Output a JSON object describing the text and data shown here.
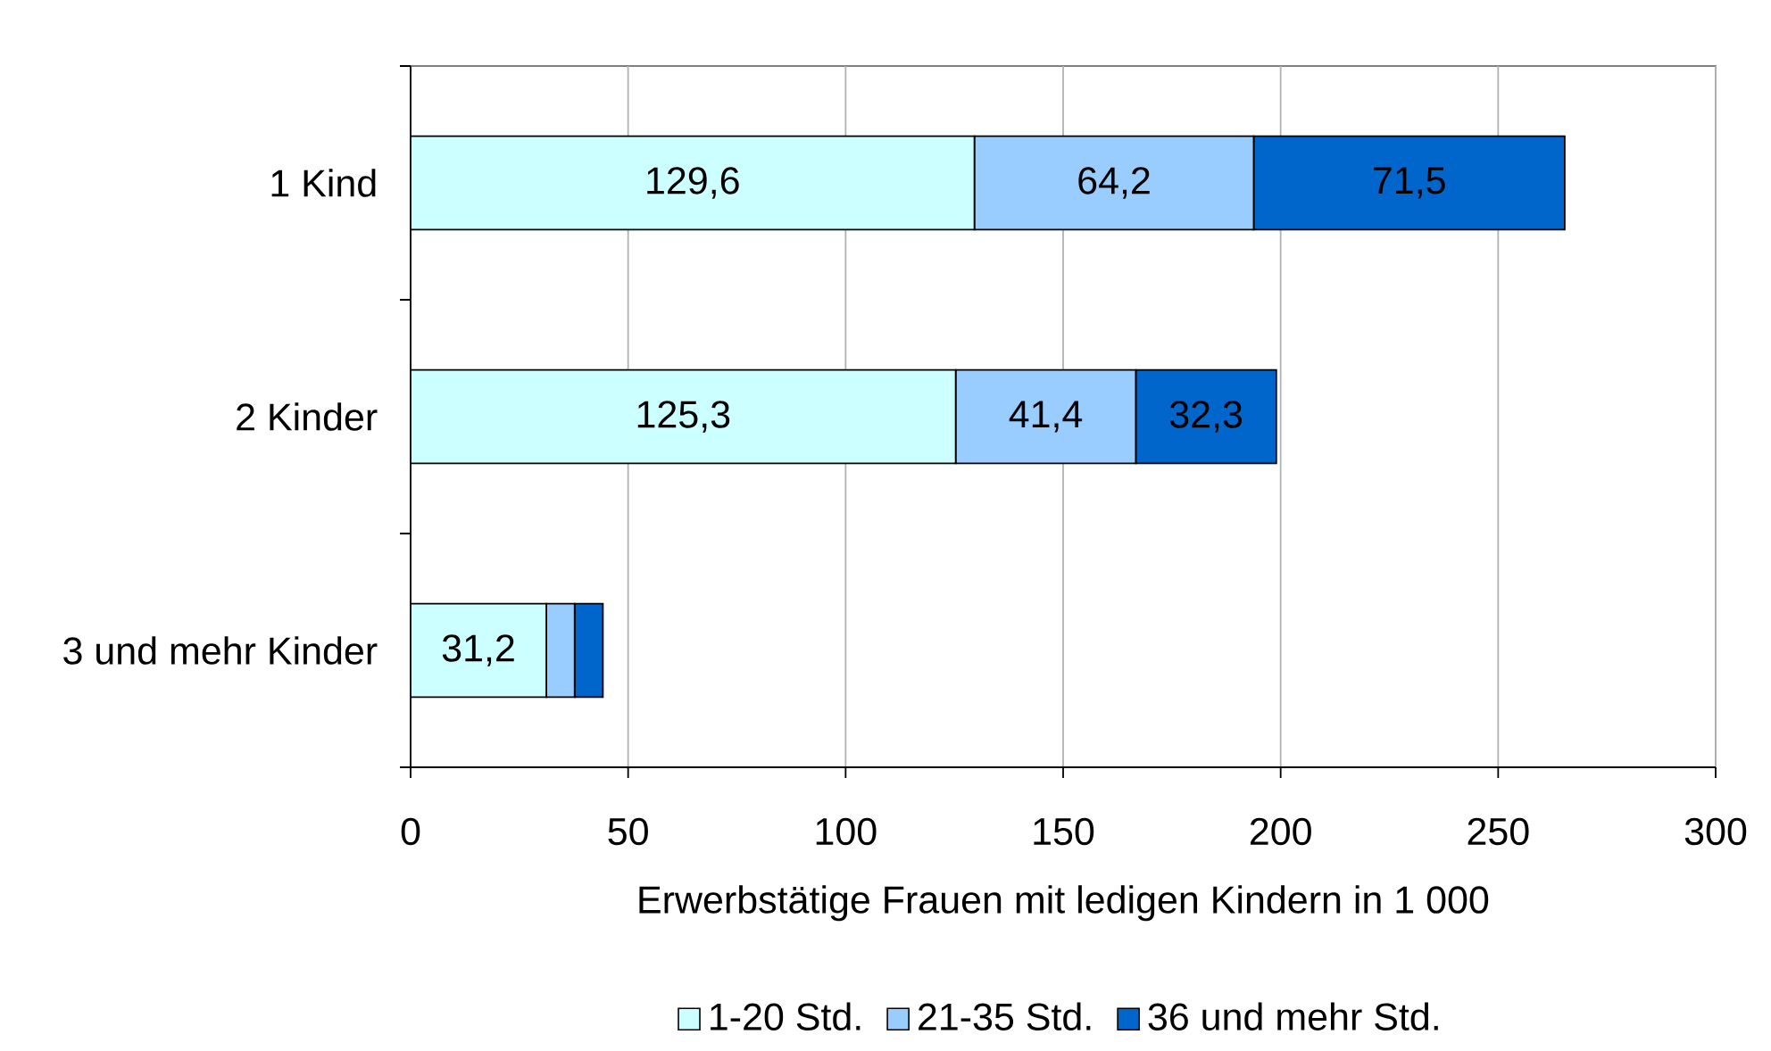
{
  "chart_data": {
    "type": "bar",
    "orientation": "horizontal",
    "stacked": true,
    "categories": [
      "1 Kind",
      "2 Kinder",
      "3 und mehr Kinder"
    ],
    "series": [
      {
        "name": "1-20 Std.",
        "color": "#ccffff",
        "values": [
          129.6,
          125.3,
          31.2
        ],
        "value_labels": [
          "129,6",
          "125,3",
          "31,2"
        ]
      },
      {
        "name": "21-35 Std.",
        "color": "#99ccff",
        "values": [
          64.2,
          41.4,
          6.5
        ],
        "value_labels": [
          "64,2",
          "41,4",
          null
        ]
      },
      {
        "name": "36 und mehr Std.",
        "color": "#0066cc",
        "values": [
          71.5,
          32.3,
          6.5
        ],
        "value_labels": [
          "71,5",
          "32,3",
          null
        ]
      }
    ],
    "xlabel": "Erwerbstätige Frauen mit ledigen Kindern in 1 000",
    "xlim": [
      0,
      300
    ],
    "xticks": [
      0,
      50,
      100,
      150,
      200,
      250,
      300
    ],
    "grid": "x",
    "legend": "bottom"
  }
}
